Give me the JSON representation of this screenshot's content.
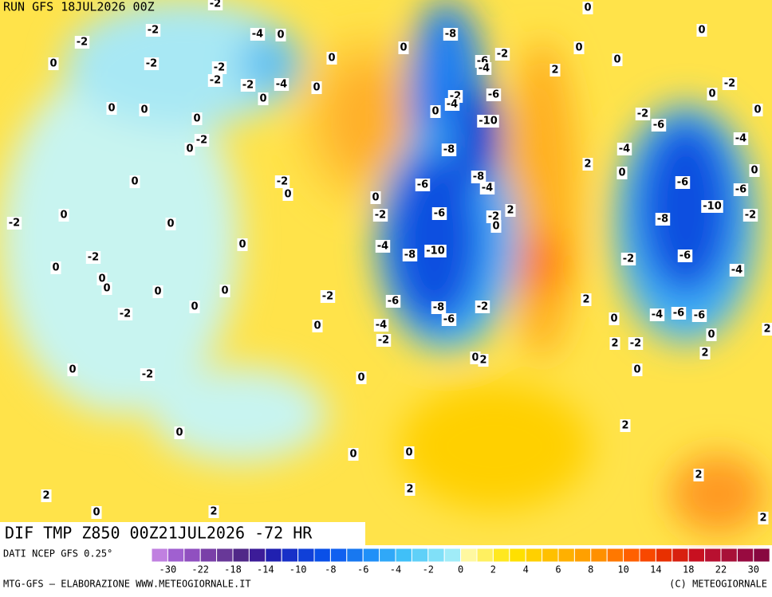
{
  "header": {
    "run": "RUN GFS 18JUL2026 00Z"
  },
  "map": {
    "title": "DIF TMP Z850 00Z21JUL2026 -72 HR",
    "contour_labels": [
      -2,
      0,
      -2,
      -4,
      0,
      -8,
      0,
      -2,
      0,
      0,
      0,
      -2,
      -2,
      0,
      -6,
      -2,
      -4,
      0,
      2,
      -2,
      -2,
      -4,
      0,
      0,
      -2,
      -4,
      -6,
      0,
      0,
      0,
      -2,
      0,
      0,
      -2,
      0,
      -10,
      -6,
      -2,
      0,
      -8,
      -4,
      -4,
      2,
      0,
      0,
      0,
      -2,
      -8,
      -4,
      -6,
      -6,
      -6,
      0,
      0,
      0,
      -2,
      -6,
      -2,
      0,
      2,
      -10,
      -8,
      -2,
      -2,
      0,
      0,
      -4,
      -8,
      -10,
      -6,
      -2,
      -2,
      0,
      0,
      0,
      0,
      0,
      -4,
      -2,
      -6,
      2,
      0,
      -8,
      -2,
      -2,
      0,
      -4,
      -6,
      -6,
      0,
      -4,
      -6,
      -2,
      0,
      2,
      2,
      -2,
      2,
      0,
      2,
      0,
      -2,
      0,
      0,
      2,
      0,
      0,
      0,
      2,
      2,
      2,
      0,
      2,
      2
    ]
  },
  "legend": {
    "source": "DATI NCEP GFS 0.25°",
    "colors": [
      "#c080e0",
      "#a060d0",
      "#9050c0",
      "#7a40a8",
      "#683898",
      "#502888",
      "#3c1c98",
      "#2020b0",
      "#1830c8",
      "#1040d8",
      "#0a50e8",
      "#1060f0",
      "#1878f0",
      "#2090f8",
      "#30a8f8",
      "#40c0f8",
      "#60d0f8",
      "#80e0f8",
      "#a0ecf8",
      "#fff8a0",
      "#fff060",
      "#ffe820",
      "#ffe000",
      "#ffd000",
      "#ffc000",
      "#ffb000",
      "#ffa000",
      "#ff9000",
      "#ff7800",
      "#ff6000",
      "#f84800",
      "#e83000",
      "#d82010",
      "#c81020",
      "#b81030",
      "#a81038",
      "#980a40",
      "#880840"
    ],
    "ticks": [
      -30,
      -22,
      -18,
      -14,
      -10,
      -8,
      -6,
      -4,
      -2,
      0,
      2,
      4,
      6,
      8,
      10,
      14,
      18,
      22,
      30
    ]
  },
  "footer": {
    "left": "MTG-GFS – ELABORAZIONE WWW.METEOGIORNALE.IT",
    "right": "(C) METEOGIORNALE"
  }
}
